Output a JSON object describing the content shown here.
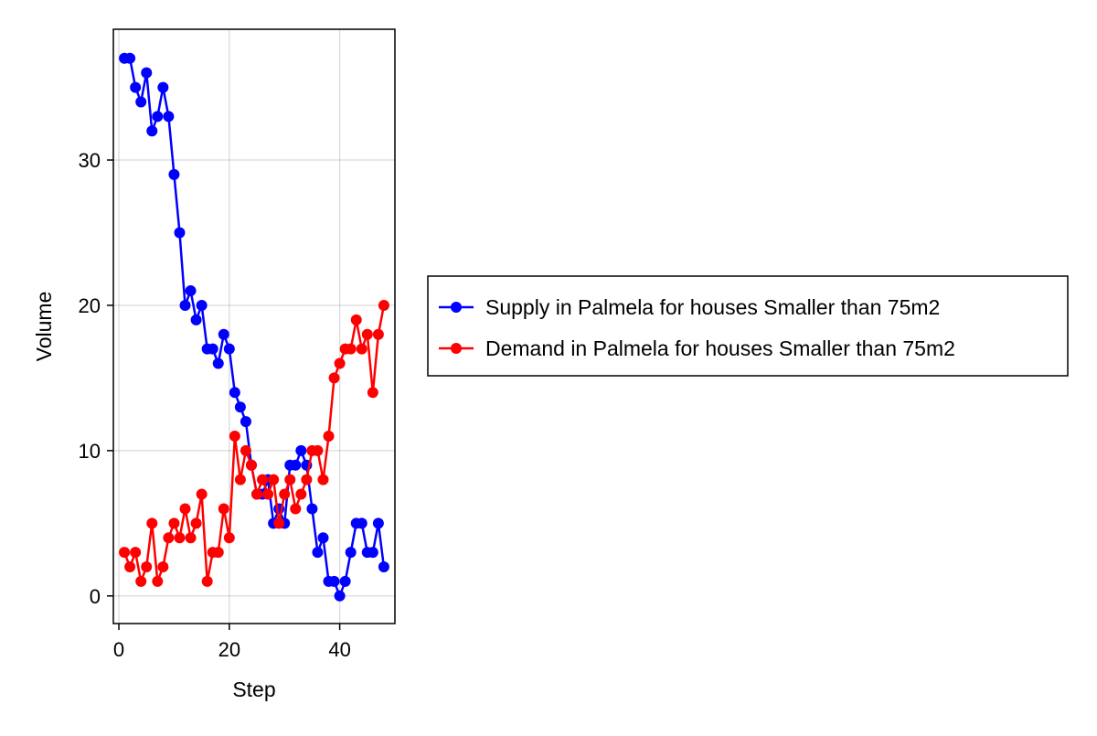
{
  "chart_data": {
    "type": "line",
    "title": "",
    "xlabel": "Step",
    "ylabel": "Volume",
    "xlim": [
      -1,
      50
    ],
    "ylim": [
      -1.9,
      39
    ],
    "xticks": [
      0,
      20,
      40
    ],
    "yticks": [
      0,
      10,
      20,
      30
    ],
    "grid": true,
    "legend_position": "right",
    "x": [
      1,
      2,
      3,
      4,
      5,
      6,
      7,
      8,
      9,
      10,
      11,
      12,
      13,
      14,
      15,
      16,
      17,
      18,
      19,
      20,
      21,
      22,
      23,
      24,
      25,
      26,
      27,
      28,
      29,
      30,
      31,
      32,
      33,
      34,
      35,
      36,
      37,
      38,
      39,
      40,
      41,
      42,
      43,
      44,
      45,
      46,
      47,
      48
    ],
    "series": [
      {
        "name": "Supply in Palmela for houses Smaller than 75m2",
        "color": "#0000ff",
        "values": [
          37,
          37,
          35,
          34,
          36,
          32,
          33,
          35,
          33,
          29,
          25,
          20,
          21,
          19,
          20,
          17,
          17,
          16,
          18,
          17,
          14,
          13,
          12,
          9,
          7,
          7,
          8,
          5,
          6,
          5,
          9,
          9,
          10,
          9,
          6,
          3,
          4,
          1,
          1,
          0,
          1,
          3,
          5,
          5,
          3,
          3,
          5,
          2
        ]
      },
      {
        "name": "Demand in Palmela for houses Smaller than 75m2",
        "color": "#ff0000",
        "values": [
          3,
          2,
          3,
          1,
          2,
          5,
          1,
          2,
          4,
          5,
          4,
          6,
          4,
          5,
          7,
          1,
          3,
          3,
          6,
          4,
          11,
          8,
          10,
          9,
          7,
          8,
          7,
          8,
          5,
          7,
          8,
          6,
          7,
          8,
          10,
          10,
          8,
          11,
          15,
          16,
          17,
          17,
          19,
          17,
          18,
          14,
          18,
          20
        ]
      }
    ]
  }
}
